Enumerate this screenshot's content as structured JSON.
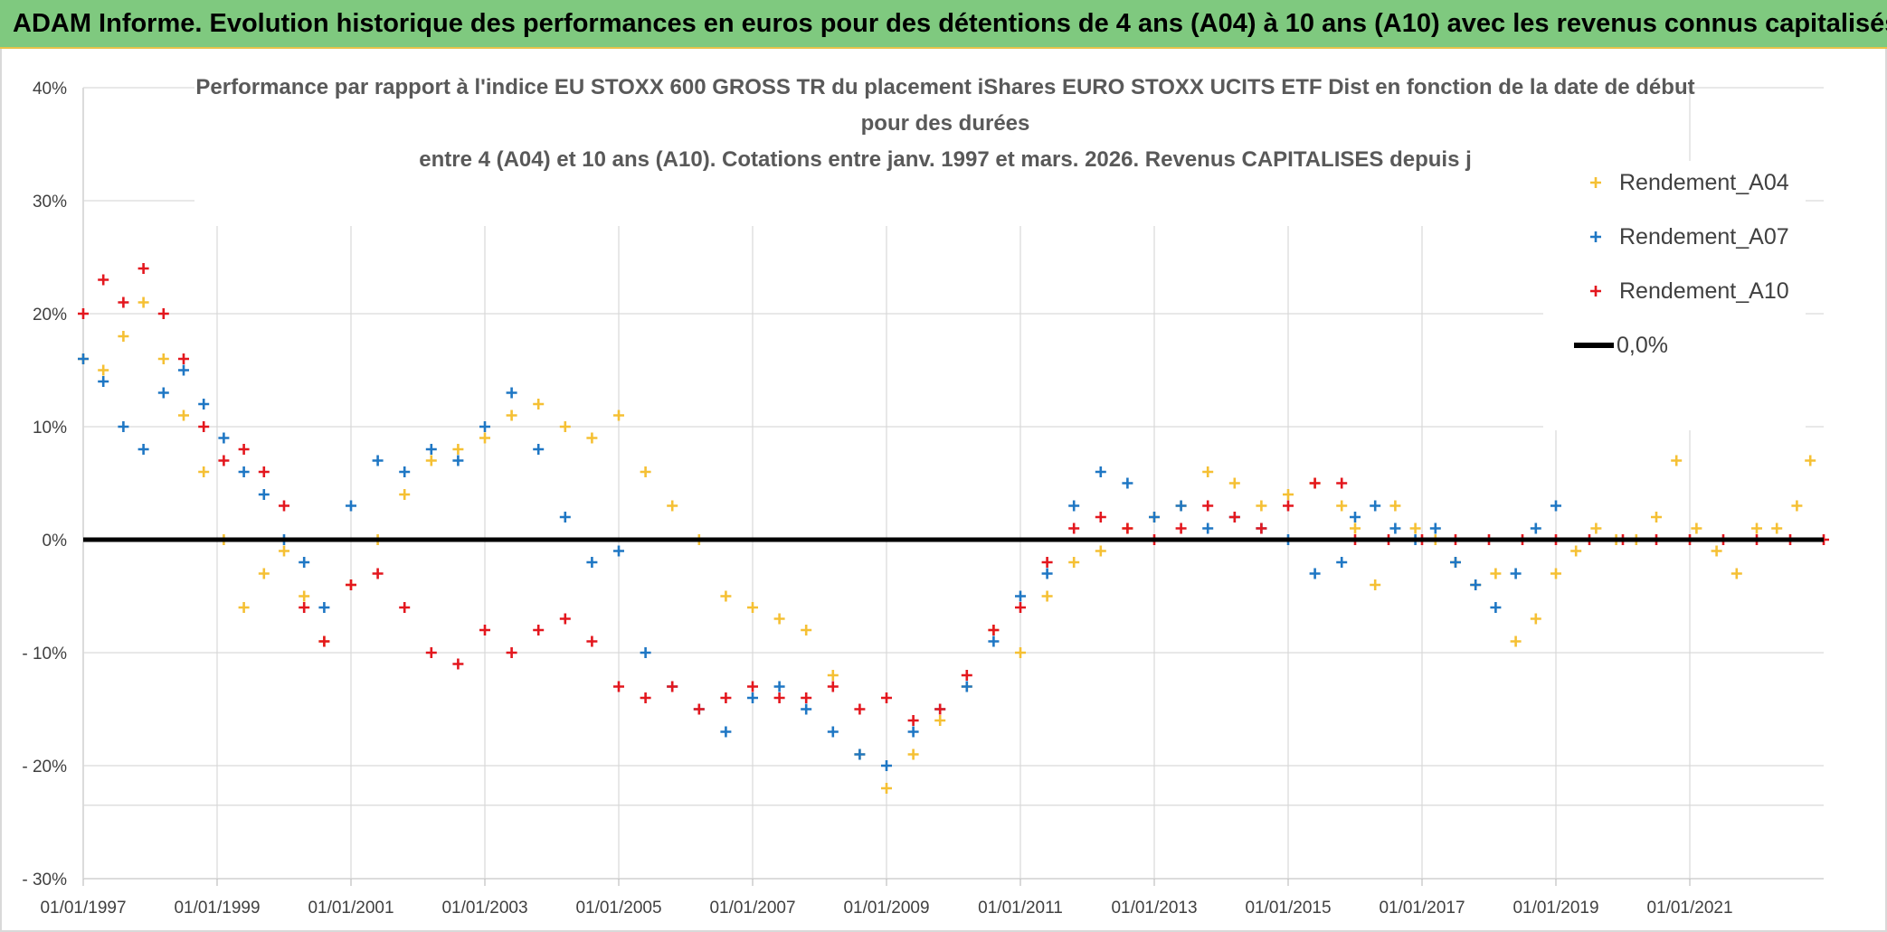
{
  "header": {
    "banner": "ADAM Informe. Evolution historique des performances en euros pour des détentions de 4 ans (A04) à 10 ans (A10) avec les revenus connus capitalisés"
  },
  "chart_data": {
    "type": "scatter",
    "title_lines": [
      "Performance par rapport à l'indice EU STOXX 600 GROSS TR  du placement iShares EURO STOXX UCITS ETF Dist en fonction de la date de début",
      "pour des durées",
      "entre 4 (A04) et 10 ans (A10). Cotations entre janv. 1997 et mars. 2026. Revenus CAPITALISES depuis j"
    ],
    "xlabel": "",
    "ylabel": "",
    "xlim": [
      1997.0,
      2023.0
    ],
    "ylim": [
      -30,
      40
    ],
    "x_ticks": [
      {
        "value": 1997,
        "label": "01/01/1997"
      },
      {
        "value": 1999,
        "label": "01/01/1999"
      },
      {
        "value": 2001,
        "label": "01/01/2001"
      },
      {
        "value": 2003,
        "label": "01/01/2003"
      },
      {
        "value": 2005,
        "label": "01/01/2005"
      },
      {
        "value": 2007,
        "label": "01/01/2007"
      },
      {
        "value": 2009,
        "label": "01/01/2009"
      },
      {
        "value": 2011,
        "label": "01/01/2011"
      },
      {
        "value": 2013,
        "label": "01/01/2013"
      },
      {
        "value": 2015,
        "label": "01/01/2015"
      },
      {
        "value": 2017,
        "label": "01/01/2017"
      },
      {
        "value": 2019,
        "label": "01/01/2019"
      },
      {
        "value": 2021,
        "label": "01/01/2021"
      }
    ],
    "y_ticks": [
      {
        "value": 40,
        "label": "40%"
      },
      {
        "value": 30,
        "label": "30%"
      },
      {
        "value": 20,
        "label": "20%"
      },
      {
        "value": 10,
        "label": "10%"
      },
      {
        "value": 0,
        "label": "0%"
      },
      {
        "value": -10,
        "label": "- 10%"
      },
      {
        "value": -20,
        "label": "- 20%"
      },
      {
        "value": -30,
        "label": "- 30%"
      }
    ],
    "grid": true,
    "legend_position": "top-right",
    "series": [
      {
        "name": "Rendement_A04",
        "color": "#f5c034",
        "marker": "plus",
        "x": [
          1997.0,
          1997.3,
          1997.6,
          1997.9,
          1998.2,
          1998.5,
          1998.8,
          1999.1,
          1999.4,
          1999.7,
          2000.0,
          2000.3,
          2000.6,
          2001.0,
          2001.4,
          2001.8,
          2002.2,
          2002.6,
          2003.0,
          2003.4,
          2003.8,
          2004.2,
          2004.6,
          2005.0,
          2005.4,
          2005.8,
          2006.2,
          2006.6,
          2007.0,
          2007.4,
          2007.8,
          2008.2,
          2008.6,
          2009.0,
          2009.4,
          2009.8,
          2010.2,
          2010.6,
          2011.0,
          2011.4,
          2011.8,
          2012.2,
          2012.6,
          2013.0,
          2013.4,
          2013.8,
          2014.2,
          2014.6,
          2015.0,
          2015.4,
          2015.8,
          2016.0,
          2016.3,
          2016.6,
          2016.9,
          2017.2,
          2017.5,
          2017.8,
          2018.1,
          2018.4,
          2018.7,
          2019.0,
          2019.3,
          2019.6,
          2019.9,
          2020.2,
          2020.5,
          2020.8,
          2021.1,
          2021.4,
          2021.7,
          2022.0,
          2022.3,
          2022.6,
          2022.8
        ],
        "y": [
          16,
          15,
          18,
          21,
          16,
          11,
          6,
          0,
          -6,
          -3,
          -1,
          -5,
          -9,
          -4,
          0,
          4,
          7,
          8,
          9,
          11,
          12,
          10,
          9,
          11,
          6,
          3,
          0,
          -5,
          -6,
          -7,
          -8,
          -12,
          -19,
          -22,
          -19,
          -16,
          -13,
          -8,
          -10,
          -5,
          -2,
          -1,
          1,
          2,
          3,
          6,
          5,
          3,
          4,
          5,
          3,
          1,
          -4,
          3,
          1,
          0,
          -2,
          -4,
          -3,
          -9,
          -7,
          -3,
          -1,
          1,
          0,
          0,
          2,
          7,
          1,
          -1,
          -3,
          1,
          1,
          3,
          7
        ]
      },
      {
        "name": "Rendement_A07",
        "color": "#1f77c4",
        "marker": "plus",
        "x": [
          1997.0,
          1997.3,
          1997.6,
          1997.9,
          1998.2,
          1998.5,
          1998.8,
          1999.1,
          1999.4,
          1999.7,
          2000.0,
          2000.3,
          2000.6,
          2001.0,
          2001.4,
          2001.8,
          2002.2,
          2002.6,
          2003.0,
          2003.4,
          2003.8,
          2004.2,
          2004.6,
          2005.0,
          2005.4,
          2005.8,
          2006.2,
          2006.6,
          2007.0,
          2007.4,
          2007.8,
          2008.2,
          2008.6,
          2009.0,
          2009.4,
          2009.8,
          2010.2,
          2010.6,
          2011.0,
          2011.4,
          2011.8,
          2012.2,
          2012.6,
          2013.0,
          2013.4,
          2013.8,
          2014.2,
          2014.6,
          2015.0,
          2015.4,
          2015.8,
          2016.0,
          2016.3,
          2016.6,
          2016.9,
          2017.2,
          2017.5,
          2017.8,
          2018.1,
          2018.4,
          2018.7,
          2019.0
        ],
        "y": [
          16,
          14,
          10,
          8,
          13,
          15,
          12,
          9,
          6,
          4,
          0,
          -2,
          -6,
          3,
          7,
          6,
          8,
          7,
          10,
          13,
          8,
          2,
          -2,
          -1,
          -10,
          -13,
          -15,
          -17,
          -14,
          -13,
          -15,
          -17,
          -19,
          -20,
          -17,
          -15,
          -13,
          -9,
          -5,
          -3,
          3,
          6,
          5,
          2,
          3,
          1,
          2,
          1,
          0,
          -3,
          -2,
          2,
          3,
          1,
          0,
          1,
          -2,
          -4,
          -6,
          -3,
          1,
          3
        ]
      },
      {
        "name": "Rendement_A10",
        "color": "#e3171e",
        "marker": "plus",
        "x": [
          1997.0,
          1997.3,
          1997.6,
          1997.9,
          1998.2,
          1998.5,
          1998.8,
          1999.1,
          1999.4,
          1999.7,
          2000.0,
          2000.3,
          2000.6,
          2001.0,
          2001.4,
          2001.8,
          2002.2,
          2002.6,
          2003.0,
          2003.4,
          2003.8,
          2004.2,
          2004.6,
          2005.0,
          2005.4,
          2005.8,
          2006.2,
          2006.6,
          2007.0,
          2007.4,
          2007.8,
          2008.2,
          2008.6,
          2009.0,
          2009.4,
          2009.8,
          2010.2,
          2010.6,
          2011.0,
          2011.4,
          2011.8,
          2012.2,
          2012.6,
          2013.0,
          2013.4,
          2013.8,
          2014.2,
          2014.6,
          2015.0,
          2015.4,
          2015.8,
          2016.0,
          2016.5,
          2017.0,
          2017.5,
          2018.0,
          2018.5,
          2019.0,
          2019.5,
          2020.0,
          2020.5,
          2021.0,
          2021.5,
          2022.0,
          2022.5,
          2023.0
        ],
        "y": [
          20,
          23,
          21,
          24,
          20,
          16,
          10,
          7,
          8,
          6,
          3,
          -6,
          -9,
          -4,
          -3,
          -6,
          -10,
          -11,
          -8,
          -10,
          -8,
          -7,
          -9,
          -13,
          -14,
          -13,
          -15,
          -14,
          -13,
          -14,
          -14,
          -13,
          -15,
          -14,
          -16,
          -15,
          -12,
          -8,
          -6,
          -2,
          1,
          2,
          1,
          0,
          1,
          3,
          2,
          1,
          3,
          5,
          5,
          0,
          0,
          0,
          0,
          0,
          0,
          0,
          0,
          0,
          0,
          0,
          0,
          0,
          0,
          0
        ]
      },
      {
        "name": "0,0%",
        "color": "#000000",
        "marker": "line",
        "x": [
          1997.0,
          2023.0
        ],
        "y": [
          0,
          0
        ]
      }
    ]
  }
}
